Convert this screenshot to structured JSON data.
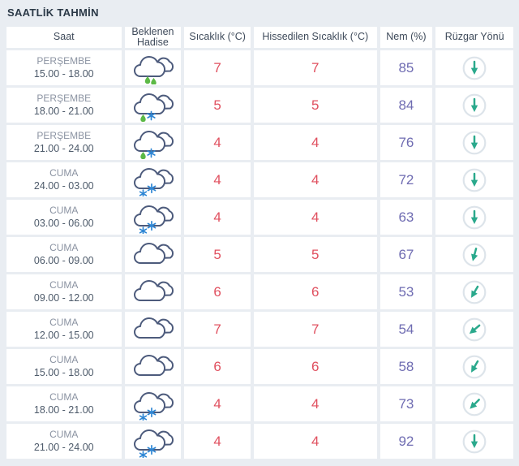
{
  "page": {
    "title": "SAATLİK TAHMİN"
  },
  "colors": {
    "background": "#e9edf2",
    "cell_background": "#ffffff",
    "title_text": "#2b3947",
    "header_text": "#3e4a5a",
    "day_text": "#8b93a2",
    "time_text": "#4d5a6a",
    "temperature_text": "#e0505f",
    "humidity_text": "#6f6cb2",
    "cloud_outline": "#4d5b7c",
    "rain_drop": "#5cb946",
    "snowflake": "#2e86d4",
    "wind_arrow": "#2aa98c",
    "wind_circle_border": "#dde4ea"
  },
  "table": {
    "columns": [
      "Saat",
      "Beklenen Hadise",
      "Sıcaklık (°C)",
      "Hissedilen Sıcaklık (°C)",
      "Nem (%)",
      "Rüzgar Yönü"
    ],
    "rows": [
      {
        "day": "PERŞEMBE",
        "time": "15.00 - 18.00",
        "icon": "rain-cloud",
        "temp": "7",
        "feels": "7",
        "humidity": "85",
        "wind_deg": 0
      },
      {
        "day": "PERŞEMBE",
        "time": "18.00 - 21.00",
        "icon": "sleet-cloud",
        "temp": "5",
        "feels": "5",
        "humidity": "84",
        "wind_deg": 0
      },
      {
        "day": "PERŞEMBE",
        "time": "21.00 - 24.00",
        "icon": "sleet-cloud",
        "temp": "4",
        "feels": "4",
        "humidity": "76",
        "wind_deg": 0
      },
      {
        "day": "CUMA",
        "time": "24.00 - 03.00",
        "icon": "snow-cloud",
        "temp": "4",
        "feels": "4",
        "humidity": "72",
        "wind_deg": 0
      },
      {
        "day": "CUMA",
        "time": "03.00 - 06.00",
        "icon": "snow-cloud",
        "temp": "4",
        "feels": "4",
        "humidity": "63",
        "wind_deg": 0
      },
      {
        "day": "CUMA",
        "time": "06.00 - 09.00",
        "icon": "clouds",
        "temp": "5",
        "feels": "5",
        "humidity": "67",
        "wind_deg": 15
      },
      {
        "day": "CUMA",
        "time": "09.00 - 12.00",
        "icon": "clouds",
        "temp": "6",
        "feels": "6",
        "humidity": "53",
        "wind_deg": 30
      },
      {
        "day": "CUMA",
        "time": "12.00 - 15.00",
        "icon": "clouds",
        "temp": "7",
        "feels": "7",
        "humidity": "54",
        "wind_deg": 50
      },
      {
        "day": "CUMA",
        "time": "15.00 - 18.00",
        "icon": "clouds",
        "temp": "6",
        "feels": "6",
        "humidity": "58",
        "wind_deg": 30
      },
      {
        "day": "CUMA",
        "time": "18.00 - 21.00",
        "icon": "snow-cloud",
        "temp": "4",
        "feels": "4",
        "humidity": "73",
        "wind_deg": 45
      },
      {
        "day": "CUMA",
        "time": "21.00 - 24.00",
        "icon": "snow-cloud",
        "temp": "4",
        "feels": "4",
        "humidity": "92",
        "wind_deg": 0
      }
    ]
  }
}
